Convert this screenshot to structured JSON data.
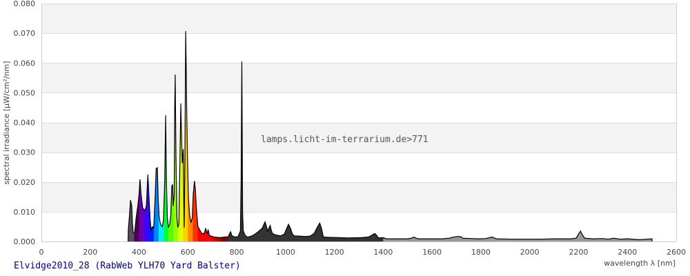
{
  "chart_data": {
    "type": "area",
    "title": "Elvidge2010_28 (RabWeb YLH70 Yard Balster)",
    "watermark": "lamps.licht-im-terrarium.de>771",
    "xlabel": "wavelength λ [nm]",
    "ylabel": "spectral irradiance [µW/cm²/nm]",
    "xlim": [
      0,
      2600
    ],
    "ylim": [
      0,
      0.08
    ],
    "xticks": [
      "0",
      "200",
      "400",
      "600",
      "800",
      "1000",
      "1200",
      "1400",
      "1600",
      "1800",
      "2000",
      "2200",
      "2400",
      "2600"
    ],
    "yticks": [
      "0.000",
      "0.010",
      "0.020",
      "0.030",
      "0.040",
      "0.050",
      "0.060",
      "0.070",
      "0.080"
    ],
    "grid": true,
    "outline_color": "#000000",
    "color_bands": [
      {
        "from": 355,
        "to": 380,
        "color": "#5b4d60"
      },
      {
        "from": 380,
        "to": 400,
        "color": "#4a0055"
      },
      {
        "from": 400,
        "to": 420,
        "color": "#6a00b0"
      },
      {
        "from": 420,
        "to": 440,
        "color": "#4400ff"
      },
      {
        "from": 440,
        "to": 460,
        "color": "#0022ff"
      },
      {
        "from": 460,
        "to": 480,
        "color": "#0088ff"
      },
      {
        "from": 480,
        "to": 500,
        "color": "#00eeff"
      },
      {
        "from": 500,
        "to": 520,
        "color": "#00ff33"
      },
      {
        "from": 520,
        "to": 540,
        "color": "#55ff00"
      },
      {
        "from": 540,
        "to": 560,
        "color": "#99ff00"
      },
      {
        "from": 560,
        "to": 580,
        "color": "#ddff00"
      },
      {
        "from": 580,
        "to": 600,
        "color": "#ffd000"
      },
      {
        "from": 600,
        "to": 620,
        "color": "#ff8800"
      },
      {
        "from": 620,
        "to": 640,
        "color": "#ff3300"
      },
      {
        "from": 640,
        "to": 700,
        "color": "#ff0000"
      },
      {
        "from": 700,
        "to": 720,
        "color": "#dd0000"
      },
      {
        "from": 720,
        "to": 740,
        "color": "#aa0000"
      },
      {
        "from": 740,
        "to": 760,
        "color": "#880000"
      },
      {
        "from": 760,
        "to": 1400,
        "color": "#333333"
      },
      {
        "from": 1400,
        "to": 2505,
        "color": "#999999"
      }
    ],
    "points": [
      [
        355,
        0.0
      ],
      [
        356,
        0.004
      ],
      [
        360,
        0.008
      ],
      [
        365,
        0.0139
      ],
      [
        370,
        0.012
      ],
      [
        373,
        0.006
      ],
      [
        376,
        0.003
      ],
      [
        382,
        0.003
      ],
      [
        388,
        0.008
      ],
      [
        395,
        0.012
      ],
      [
        400,
        0.016
      ],
      [
        404,
        0.0209
      ],
      [
        408,
        0.016
      ],
      [
        415,
        0.0112
      ],
      [
        424,
        0.0104
      ],
      [
        430,
        0.012
      ],
      [
        436,
        0.0225
      ],
      [
        440,
        0.016
      ],
      [
        445,
        0.008
      ],
      [
        449,
        0.004
      ],
      [
        455,
        0.005
      ],
      [
        460,
        0.0045
      ],
      [
        466,
        0.015
      ],
      [
        470,
        0.0245
      ],
      [
        475,
        0.0248
      ],
      [
        478,
        0.015
      ],
      [
        482,
        0.0085
      ],
      [
        486,
        0.0065
      ],
      [
        490,
        0.0055
      ],
      [
        495,
        0.005
      ],
      [
        500,
        0.007
      ],
      [
        505,
        0.02
      ],
      [
        509,
        0.0424
      ],
      [
        512,
        0.02
      ],
      [
        516,
        0.008
      ],
      [
        520,
        0.0047
      ],
      [
        526,
        0.006
      ],
      [
        530,
        0.009
      ],
      [
        534,
        0.0185
      ],
      [
        537,
        0.0192
      ],
      [
        540,
        0.012
      ],
      [
        544,
        0.016
      ],
      [
        546,
        0.045
      ],
      [
        548,
        0.0561
      ],
      [
        551,
        0.03
      ],
      [
        555,
        0.008
      ],
      [
        559,
        0.0047
      ],
      [
        563,
        0.006
      ],
      [
        567,
        0.025
      ],
      [
        571,
        0.0464
      ],
      [
        574,
        0.035
      ],
      [
        577,
        0.0263
      ],
      [
        581,
        0.031
      ],
      [
        583,
        0.015
      ],
      [
        585,
        0.0047
      ],
      [
        588,
        0.03
      ],
      [
        590,
        0.059
      ],
      [
        591,
        0.0707
      ],
      [
        593,
        0.059
      ],
      [
        595,
        0.045
      ],
      [
        598,
        0.03
      ],
      [
        602,
        0.015
      ],
      [
        607,
        0.009
      ],
      [
        613,
        0.0063
      ],
      [
        618,
        0.008
      ],
      [
        622,
        0.016
      ],
      [
        627,
        0.0204
      ],
      [
        631,
        0.017
      ],
      [
        635,
        0.011
      ],
      [
        641,
        0.005
      ],
      [
        648,
        0.004
      ],
      [
        655,
        0.003
      ],
      [
        662,
        0.0025
      ],
      [
        668,
        0.003
      ],
      [
        673,
        0.0045
      ],
      [
        678,
        0.0025
      ],
      [
        683,
        0.004
      ],
      [
        688,
        0.002
      ],
      [
        697,
        0.0018
      ],
      [
        707,
        0.0015
      ],
      [
        730,
        0.0013
      ],
      [
        754,
        0.0015
      ],
      [
        765,
        0.0016
      ],
      [
        770,
        0.0025
      ],
      [
        775,
        0.0033
      ],
      [
        780,
        0.002
      ],
      [
        791,
        0.0015
      ],
      [
        805,
        0.0016
      ],
      [
        815,
        0.0035
      ],
      [
        818,
        0.02
      ],
      [
        820,
        0.049
      ],
      [
        821,
        0.0605
      ],
      [
        822,
        0.045
      ],
      [
        824,
        0.01
      ],
      [
        827,
        0.0035
      ],
      [
        835,
        0.002
      ],
      [
        844,
        0.0015
      ],
      [
        860,
        0.0018
      ],
      [
        875,
        0.0025
      ],
      [
        885,
        0.0031
      ],
      [
        895,
        0.0038
      ],
      [
        904,
        0.0044
      ],
      [
        910,
        0.0055
      ],
      [
        916,
        0.0066
      ],
      [
        922,
        0.005
      ],
      [
        927,
        0.0035
      ],
      [
        932,
        0.0045
      ],
      [
        937,
        0.0054
      ],
      [
        941,
        0.004
      ],
      [
        946,
        0.0027
      ],
      [
        960,
        0.0022
      ],
      [
        980,
        0.0019
      ],
      [
        995,
        0.0025
      ],
      [
        1005,
        0.0045
      ],
      [
        1012,
        0.0058
      ],
      [
        1020,
        0.0045
      ],
      [
        1028,
        0.0025
      ],
      [
        1036,
        0.0019
      ],
      [
        1060,
        0.0018
      ],
      [
        1080,
        0.0017
      ],
      [
        1100,
        0.0018
      ],
      [
        1117,
        0.0027
      ],
      [
        1130,
        0.0048
      ],
      [
        1140,
        0.0062
      ],
      [
        1147,
        0.0045
      ],
      [
        1155,
        0.0015
      ],
      [
        1180,
        0.0014
      ],
      [
        1218,
        0.0013
      ],
      [
        1260,
        0.0012
      ],
      [
        1310,
        0.0013
      ],
      [
        1340,
        0.0015
      ],
      [
        1355,
        0.0022
      ],
      [
        1365,
        0.0027
      ],
      [
        1372,
        0.0022
      ],
      [
        1380,
        0.0012
      ],
      [
        1400,
        0.0013
      ],
      [
        1413,
        0.0009
      ],
      [
        1450,
        0.0009
      ],
      [
        1500,
        0.0009
      ],
      [
        1515,
        0.0011
      ],
      [
        1526,
        0.0015
      ],
      [
        1535,
        0.0011
      ],
      [
        1545,
        0.0009
      ],
      [
        1600,
        0.0009
      ],
      [
        1640,
        0.0009
      ],
      [
        1670,
        0.0011
      ],
      [
        1688,
        0.0015
      ],
      [
        1705,
        0.0017
      ],
      [
        1719,
        0.0016
      ],
      [
        1725,
        0.0011
      ],
      [
        1760,
        0.001
      ],
      [
        1790,
        0.0009
      ],
      [
        1820,
        0.001
      ],
      [
        1846,
        0.0015
      ],
      [
        1858,
        0.0011
      ],
      [
        1865,
        0.0009
      ],
      [
        1920,
        0.0008
      ],
      [
        1998,
        0.0008
      ],
      [
        2050,
        0.0008
      ],
      [
        2100,
        0.0009
      ],
      [
        2168,
        0.0009
      ],
      [
        2190,
        0.0011
      ],
      [
        2200,
        0.0025
      ],
      [
        2208,
        0.0035
      ],
      [
        2216,
        0.0022
      ],
      [
        2225,
        0.0011
      ],
      [
        2260,
        0.0009
      ],
      [
        2298,
        0.001
      ],
      [
        2320,
        0.0008
      ],
      [
        2345,
        0.0011
      ],
      [
        2370,
        0.0008
      ],
      [
        2400,
        0.0009
      ],
      [
        2450,
        0.0006
      ],
      [
        2480,
        0.0008
      ],
      [
        2501,
        0.0009
      ],
      [
        2501,
        0.0
      ]
    ]
  }
}
